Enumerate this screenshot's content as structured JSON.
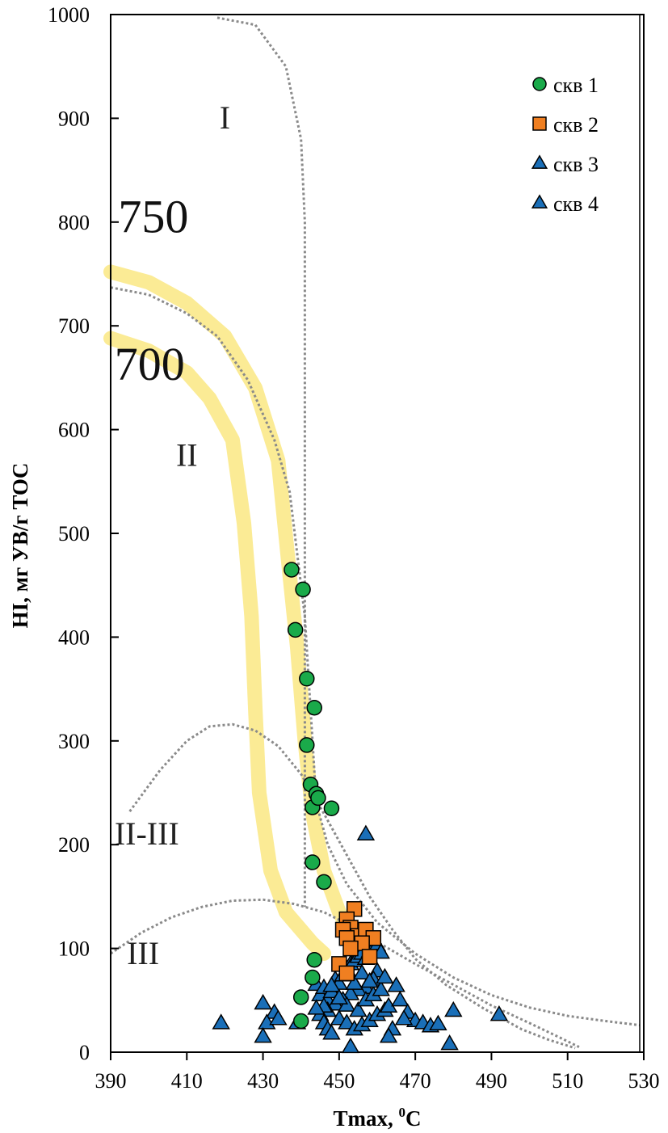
{
  "chart_data": {
    "type": "scatter",
    "xlabel": "Tmax, ",
    "xlabel_sup": "0",
    "xlabel_unit": "C",
    "ylabel": "HI, мг УВ/г TOC",
    "xlim": [
      390,
      530
    ],
    "ylim": [
      0,
      1000
    ],
    "xticks": [
      "390",
      "410",
      "430",
      "450",
      "470",
      "490",
      "510",
      "530"
    ],
    "yticks": [
      "0",
      "100",
      "200",
      "300",
      "400",
      "500",
      "600",
      "700",
      "800",
      "900",
      "1000"
    ],
    "grid": false,
    "legend_position": "top-right",
    "region_labels": [
      {
        "text": "I",
        "x": 420,
        "y": 890
      },
      {
        "text": "II",
        "x": 410,
        "y": 565
      },
      {
        "text": "II-III",
        "x": 399.5,
        "y": 200
      },
      {
        "text": "III",
        "x": 398.5,
        "y": 85
      }
    ],
    "isolines": [
      {
        "label": "750",
        "label_x": 392,
        "label_y": 790,
        "points": [
          [
            390,
            752
          ],
          [
            400,
            742
          ],
          [
            410,
            722
          ],
          [
            420,
            690
          ],
          [
            428,
            640
          ],
          [
            434,
            570
          ],
          [
            437,
            460
          ],
          [
            439,
            390
          ],
          [
            441,
            300
          ],
          [
            443,
            230
          ],
          [
            446,
            175
          ],
          [
            450,
            135
          ],
          [
            453,
            115
          ]
        ]
      },
      {
        "label": "700",
        "label_x": 391,
        "label_y": 648,
        "points": [
          [
            390,
            688
          ],
          [
            400,
            676
          ],
          [
            410,
            655
          ],
          [
            416,
            630
          ],
          [
            422,
            590
          ],
          [
            425,
            510
          ],
          [
            427,
            420
          ],
          [
            428,
            330
          ],
          [
            429,
            250
          ],
          [
            432,
            175
          ],
          [
            436,
            135
          ],
          [
            443,
            105
          ],
          [
            446,
            95
          ]
        ]
      }
    ],
    "boundaries": [
      {
        "points": [
          [
            418,
            997
          ],
          [
            428,
            990
          ],
          [
            436,
            950
          ],
          [
            440,
            880
          ],
          [
            441,
            800
          ],
          [
            441,
            700
          ],
          [
            441,
            600
          ],
          [
            441,
            500
          ],
          [
            441,
            400
          ],
          [
            441,
            300
          ],
          [
            441,
            200
          ],
          [
            441,
            140
          ]
        ]
      },
      {
        "points": [
          [
            390,
            737
          ],
          [
            400,
            730
          ],
          [
            410,
            712
          ],
          [
            418,
            690
          ],
          [
            426,
            648
          ],
          [
            433,
            590
          ],
          [
            437,
            540
          ],
          [
            439,
            480
          ],
          [
            441,
            420
          ],
          [
            442,
            360
          ],
          [
            443,
            300
          ],
          [
            444,
            240
          ],
          [
            447,
            200
          ],
          [
            452,
            162
          ],
          [
            460,
            125
          ],
          [
            470,
            95
          ],
          [
            480,
            72
          ],
          [
            490,
            55
          ],
          [
            500,
            43
          ],
          [
            510,
            35
          ],
          [
            520,
            30
          ],
          [
            529,
            26
          ]
        ]
      },
      {
        "points": [
          [
            395,
            232
          ],
          [
            403,
            272
          ],
          [
            410,
            300
          ],
          [
            416,
            314
          ],
          [
            422,
            316
          ],
          [
            428,
            310
          ],
          [
            434,
            295
          ],
          [
            440,
            268
          ],
          [
            446,
            230
          ],
          [
            452,
            190
          ],
          [
            458,
            150
          ],
          [
            464,
            118
          ],
          [
            470,
            90
          ],
          [
            478,
            65
          ],
          [
            488,
            42
          ],
          [
            498,
            22
          ],
          [
            505,
            12
          ],
          [
            512,
            4
          ]
        ]
      },
      {
        "points": [
          [
            390,
            95
          ],
          [
            398,
            115
          ],
          [
            406,
            130
          ],
          [
            414,
            140
          ],
          [
            422,
            146
          ],
          [
            430,
            147
          ],
          [
            438,
            143
          ],
          [
            446,
            135
          ],
          [
            454,
            120
          ],
          [
            462,
            102
          ],
          [
            470,
            85
          ],
          [
            480,
            65
          ],
          [
            490,
            45
          ],
          [
            500,
            28
          ],
          [
            508,
            14
          ],
          [
            513,
            5
          ]
        ]
      }
    ],
    "series": [
      {
        "name": "скв 1",
        "marker": "circle",
        "color": "#1aaa4a",
        "points": [
          [
            437.5,
            465
          ],
          [
            440.5,
            446
          ],
          [
            438.5,
            407
          ],
          [
            441.5,
            360
          ],
          [
            443.5,
            332
          ],
          [
            441.5,
            296
          ],
          [
            442.5,
            258
          ],
          [
            444,
            249
          ],
          [
            443,
            236
          ],
          [
            444.5,
            245
          ],
          [
            448,
            235
          ],
          [
            443,
            183
          ],
          [
            446,
            164
          ],
          [
            443.5,
            89
          ],
          [
            443,
            72
          ],
          [
            440,
            53
          ],
          [
            440,
            30
          ]
        ]
      },
      {
        "name": "скв 2",
        "marker": "square",
        "color": "#f07f21",
        "points": [
          [
            454,
            138
          ],
          [
            452,
            128
          ],
          [
            453,
            120
          ],
          [
            451,
            118
          ],
          [
            455,
            112
          ],
          [
            457,
            118
          ],
          [
            452,
            110
          ],
          [
            459,
            110
          ],
          [
            456,
            105
          ],
          [
            453,
            100
          ],
          [
            450,
            85
          ],
          [
            458,
            92
          ],
          [
            452,
            76
          ]
        ]
      },
      {
        "name": "скв 3",
        "marker": "triangle",
        "color": "#1a6fb8",
        "points": [
          [
            457,
            210
          ],
          [
            419,
            28
          ],
          [
            430,
            47
          ],
          [
            433,
            38
          ],
          [
            431,
            28
          ],
          [
            434,
            32
          ],
          [
            430,
            15
          ],
          [
            439,
            28
          ],
          [
            444,
            65
          ],
          [
            445,
            55
          ],
          [
            446,
            62
          ],
          [
            447,
            50
          ],
          [
            448,
            58
          ],
          [
            449,
            70
          ],
          [
            450,
            66
          ],
          [
            451,
            74
          ],
          [
            452,
            80
          ],
          [
            453,
            85
          ],
          [
            454,
            88
          ],
          [
            455,
            92
          ],
          [
            456,
            95
          ],
          [
            457,
            90
          ],
          [
            458,
            97
          ],
          [
            459,
            100
          ],
          [
            460,
            103
          ],
          [
            461,
            96
          ],
          [
            460,
            78
          ],
          [
            459,
            70
          ],
          [
            457,
            62
          ],
          [
            455,
            60
          ],
          [
            453,
            56
          ],
          [
            451,
            50
          ],
          [
            449,
            46
          ],
          [
            447,
            40
          ],
          [
            445,
            36
          ],
          [
            446,
            28
          ],
          [
            447,
            22
          ],
          [
            448,
            18
          ],
          [
            450,
            32
          ],
          [
            452,
            28
          ],
          [
            454,
            22
          ],
          [
            456,
            26
          ],
          [
            458,
            30
          ],
          [
            460,
            36
          ],
          [
            462,
            40
          ],
          [
            463,
            44
          ],
          [
            465,
            64
          ],
          [
            466,
            50
          ],
          [
            468,
            38
          ],
          [
            470,
            30
          ],
          [
            472,
            28
          ],
          [
            474,
            25
          ],
          [
            476,
            27
          ],
          [
            480,
            40
          ],
          [
            492,
            36
          ],
          [
            479,
            8
          ],
          [
            453,
            5
          ],
          [
            452,
            45
          ],
          [
            455,
            40
          ],
          [
            457,
            50
          ],
          [
            459,
            55
          ],
          [
            461,
            60
          ],
          [
            448,
            64
          ],
          [
            446,
            44
          ],
          [
            450,
            52
          ],
          [
            454,
            66
          ],
          [
            456,
            76
          ],
          [
            458,
            68
          ],
          [
            462,
            72
          ],
          [
            444,
            42
          ],
          [
            464,
            22
          ],
          [
            467,
            32
          ],
          [
            463,
            15
          ]
        ]
      },
      {
        "name": "скв 4",
        "marker": "triangle",
        "color": "#1a6fb8",
        "points": []
      }
    ]
  }
}
